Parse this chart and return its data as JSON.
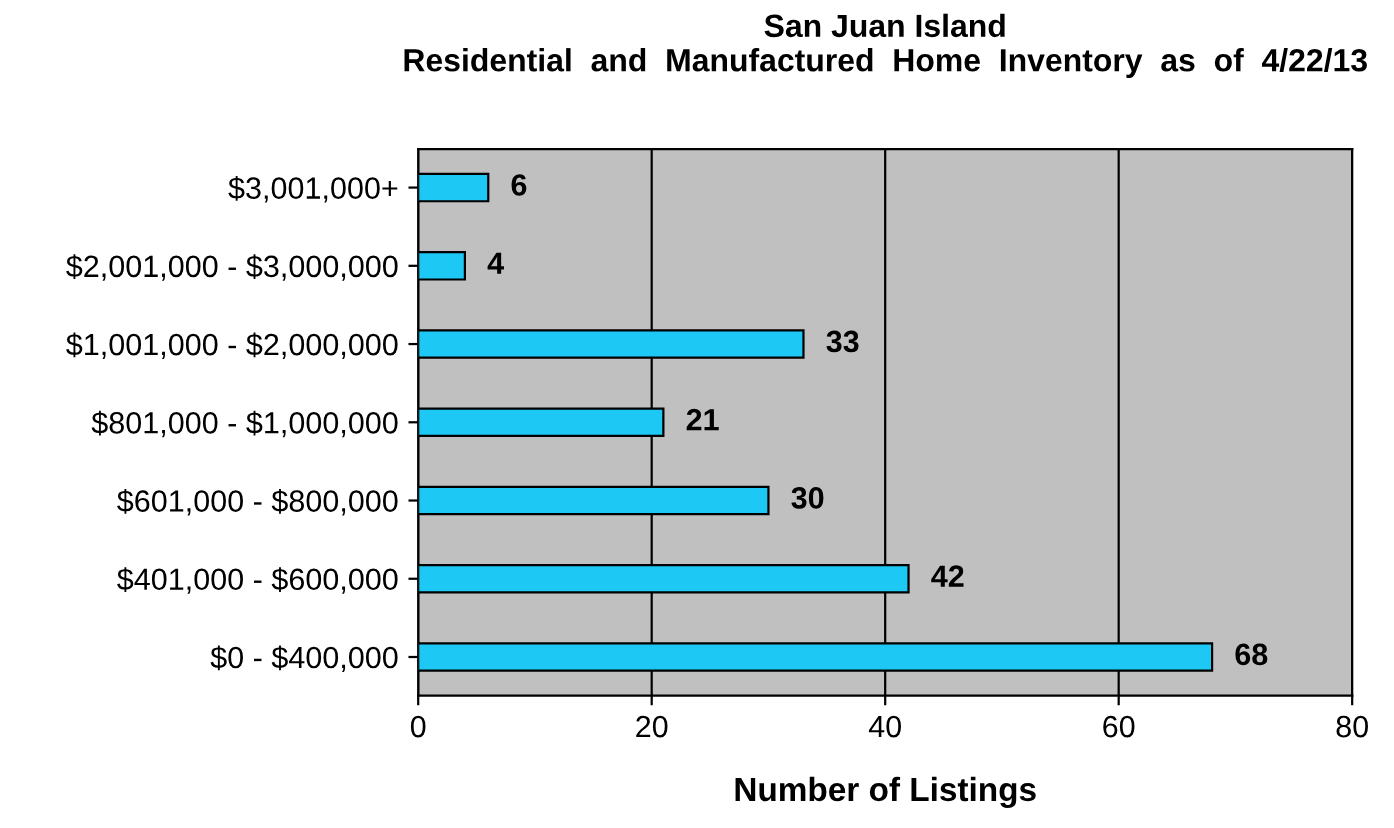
{
  "chart_data": {
    "type": "bar",
    "orientation": "horizontal",
    "title": "San Juan Island\nResidential  and  Manufactured  Home  Inventory  as  of  4/22/13",
    "xlabel": "Number of Listings",
    "categories": [
      "$3,001,000+",
      "$2,001,000 - $3,000,000",
      "$1,001,000 - $2,000,000",
      "$801,000 - $1,000,000",
      "$601,000 - $800,000",
      "$401,000 - $600,000",
      "$0 - $400,000"
    ],
    "values": [
      6,
      4,
      33,
      21,
      30,
      42,
      68
    ],
    "color": "#1ec8f5",
    "xlim": [
      0,
      80
    ],
    "xticks": [
      0,
      20,
      40,
      60,
      80
    ],
    "grid": "x",
    "data_labels": true
  }
}
